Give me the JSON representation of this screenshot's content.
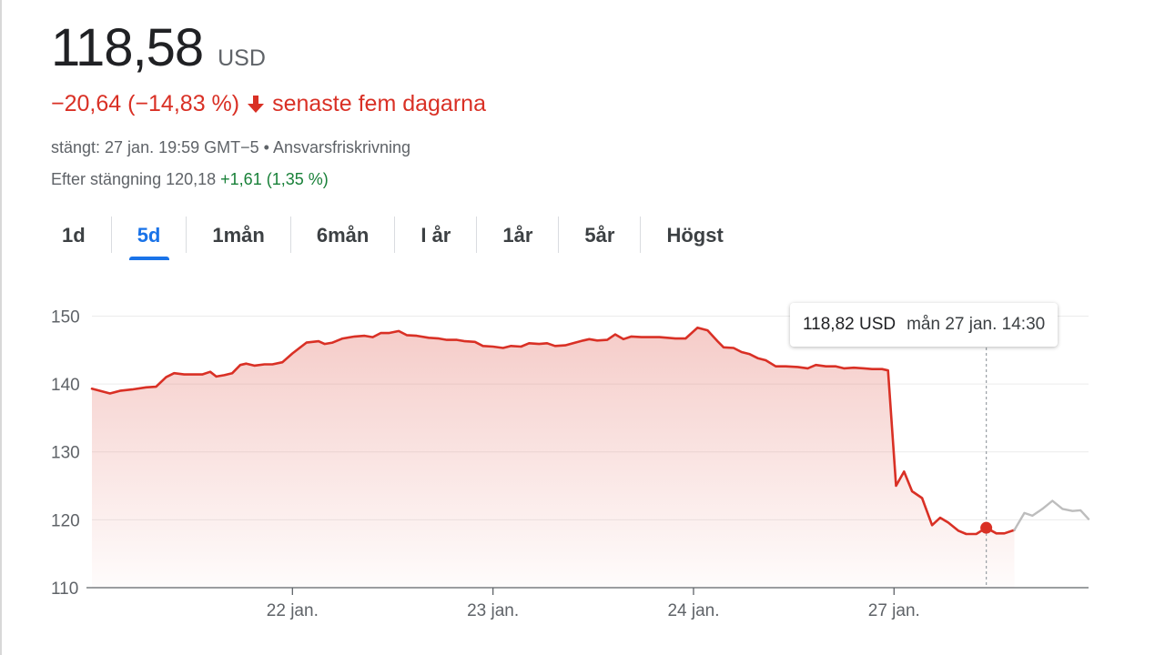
{
  "quote": {
    "price": "118,58",
    "currency": "USD",
    "change": "−20,64 (−14,83 %)",
    "change_period": "senaste fem dagarna",
    "closed_info": "stängt: 27 jan. 19:59 GMT−5",
    "disclaimer_separator": "•",
    "disclaimer": "Ansvarsfriskrivning",
    "after_hours_label": "Efter stängning 120,18",
    "after_hours_change": "+1,61 (1,35 %)"
  },
  "colors": {
    "negative": "#d93025",
    "positive": "#188038",
    "accent": "#1a73e8",
    "after_hours_line": "#bdbdbd"
  },
  "tabs": [
    {
      "label": "1d",
      "active": false
    },
    {
      "label": "5d",
      "active": true
    },
    {
      "label": "1mån",
      "active": false
    },
    {
      "label": "6mån",
      "active": false
    },
    {
      "label": "I år",
      "active": false
    },
    {
      "label": "1år",
      "active": false
    },
    {
      "label": "5år",
      "active": false
    },
    {
      "label": "Högst",
      "active": false
    }
  ],
  "tooltip": {
    "price": "118,82 USD",
    "date": "mån 27 jan. 14:30"
  },
  "chart_data": {
    "type": "line",
    "title": "",
    "xlabel": "",
    "ylabel": "",
    "ylim": [
      110,
      151
    ],
    "yticks": [
      110,
      120,
      130,
      140,
      150
    ],
    "xticks": [
      {
        "x": 1.0,
        "label": "22 jan."
      },
      {
        "x": 2.0,
        "label": "23 jan."
      },
      {
        "x": 3.0,
        "label": "24 jan."
      },
      {
        "x": 4.0,
        "label": "27 jan."
      }
    ],
    "xlim": [
      0.0,
      4.97
    ],
    "grid": true,
    "legend": "none",
    "baseline": 142.0,
    "marker": {
      "x": 4.46,
      "y": 118.82
    },
    "series": [
      {
        "role": "regular",
        "points": [
          [
            0.0,
            139.3
          ],
          [
            0.09,
            138.6
          ],
          [
            0.14,
            139.0
          ],
          [
            0.2,
            139.2
          ],
          [
            0.27,
            139.5
          ],
          [
            0.32,
            139.6
          ],
          [
            0.37,
            141.0
          ],
          [
            0.41,
            141.6
          ],
          [
            0.46,
            141.4
          ],
          [
            0.52,
            141.4
          ],
          [
            0.55,
            141.4
          ],
          [
            0.59,
            141.8
          ],
          [
            0.62,
            141.1
          ],
          [
            0.66,
            141.3
          ],
          [
            0.7,
            141.6
          ],
          [
            0.74,
            142.8
          ],
          [
            0.77,
            143.0
          ],
          [
            0.81,
            142.7
          ],
          [
            0.86,
            142.9
          ],
          [
            0.9,
            142.9
          ],
          [
            0.95,
            143.2
          ],
          [
            1.0,
            144.5
          ],
          [
            1.07,
            146.1
          ],
          [
            1.13,
            146.3
          ],
          [
            1.16,
            145.9
          ],
          [
            1.2,
            146.1
          ],
          [
            1.25,
            146.7
          ],
          [
            1.31,
            147.0
          ],
          [
            1.36,
            147.1
          ],
          [
            1.4,
            146.9
          ],
          [
            1.44,
            147.5
          ],
          [
            1.48,
            147.5
          ],
          [
            1.53,
            147.8
          ],
          [
            1.57,
            147.2
          ],
          [
            1.62,
            147.1
          ],
          [
            1.68,
            146.8
          ],
          [
            1.73,
            146.7
          ],
          [
            1.77,
            146.5
          ],
          [
            1.82,
            146.5
          ],
          [
            1.86,
            146.3
          ],
          [
            1.91,
            146.2
          ],
          [
            1.95,
            145.6
          ],
          [
            2.0,
            145.5
          ],
          [
            2.05,
            145.3
          ],
          [
            2.09,
            145.6
          ],
          [
            2.14,
            145.5
          ],
          [
            2.18,
            146.0
          ],
          [
            2.23,
            145.9
          ],
          [
            2.27,
            146.0
          ],
          [
            2.31,
            145.6
          ],
          [
            2.36,
            145.7
          ],
          [
            2.41,
            146.1
          ],
          [
            2.45,
            146.4
          ],
          [
            2.48,
            146.6
          ],
          [
            2.52,
            146.4
          ],
          [
            2.57,
            146.5
          ],
          [
            2.61,
            147.3
          ],
          [
            2.65,
            146.6
          ],
          [
            2.69,
            147.0
          ],
          [
            2.74,
            146.9
          ],
          [
            2.78,
            146.9
          ],
          [
            2.83,
            146.9
          ],
          [
            2.87,
            146.8
          ],
          [
            2.91,
            146.7
          ],
          [
            2.96,
            146.7
          ],
          [
            3.02,
            148.3
          ],
          [
            3.07,
            147.9
          ],
          [
            3.12,
            146.3
          ],
          [
            3.15,
            145.4
          ],
          [
            3.2,
            145.3
          ],
          [
            3.24,
            144.7
          ],
          [
            3.28,
            144.4
          ],
          [
            3.32,
            143.8
          ],
          [
            3.36,
            143.5
          ],
          [
            3.41,
            142.6
          ],
          [
            3.46,
            142.6
          ],
          [
            3.52,
            142.5
          ],
          [
            3.57,
            142.3
          ],
          [
            3.61,
            142.8
          ],
          [
            3.66,
            142.6
          ],
          [
            3.71,
            142.6
          ],
          [
            3.75,
            142.3
          ],
          [
            3.8,
            142.4
          ],
          [
            3.85,
            142.3
          ],
          [
            3.89,
            142.2
          ],
          [
            3.94,
            142.2
          ],
          [
            3.97,
            142.0
          ],
          [
            4.01,
            125.0
          ],
          [
            4.05,
            127.1
          ],
          [
            4.09,
            124.2
          ],
          [
            4.14,
            123.2
          ],
          [
            4.19,
            119.2
          ],
          [
            4.23,
            120.3
          ],
          [
            4.27,
            119.6
          ],
          [
            4.32,
            118.4
          ],
          [
            4.36,
            117.9
          ],
          [
            4.41,
            117.9
          ],
          [
            4.46,
            118.82
          ],
          [
            4.51,
            118.0
          ],
          [
            4.55,
            118.0
          ],
          [
            4.6,
            118.5
          ]
        ]
      },
      {
        "role": "after-hours",
        "points": [
          [
            4.6,
            118.5
          ],
          [
            4.65,
            121.0
          ],
          [
            4.69,
            120.6
          ],
          [
            4.74,
            121.6
          ],
          [
            4.79,
            122.8
          ],
          [
            4.84,
            121.6
          ],
          [
            4.89,
            121.3
          ],
          [
            4.93,
            121.4
          ],
          [
            4.97,
            120.1
          ]
        ]
      }
    ]
  }
}
